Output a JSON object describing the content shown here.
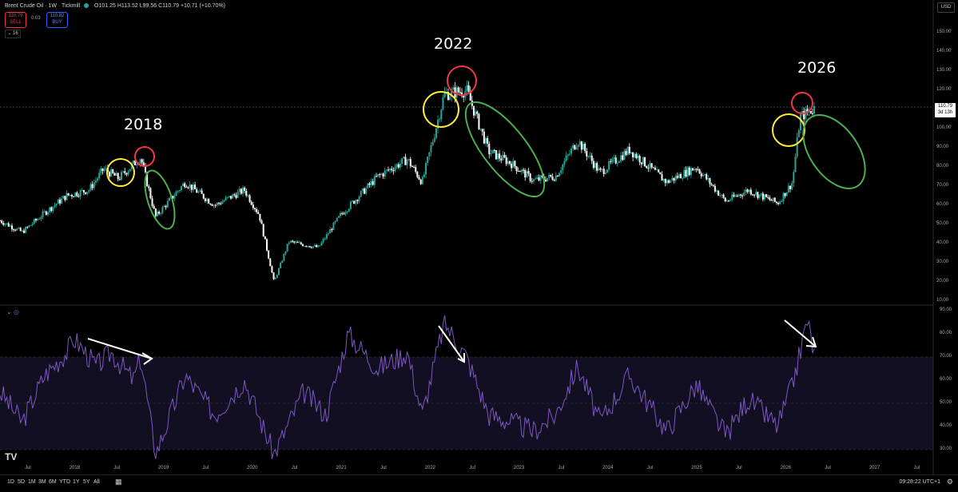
{
  "header": {
    "symbol_title": "Brent Crude Oil · 1W · Tickmill",
    "ohlc": "O101.25 H113.52 L99.56 C110.79 +10.71 (+10.70%)",
    "sell_price": "110.79",
    "sell_label": "SELL",
    "spread": "0.03",
    "buy_price": "110.82",
    "buy_label": "BUY",
    "indicator_count": "16",
    "currency": "USD"
  },
  "price_axis": {
    "ticks": [
      "150.00",
      "140.00",
      "130.00",
      "120.00",
      "110.00",
      "100.00",
      "90.00",
      "80.00",
      "70.00",
      "60.00",
      "50.00",
      "40.00",
      "30.00",
      "20.00",
      "10.00"
    ],
    "last_price": "110.79",
    "countdown": "3d 13h"
  },
  "rsi_axis": {
    "ticks": [
      "90.00",
      "80.00",
      "70.00",
      "60.00",
      "50.00",
      "40.00",
      "30.00"
    ]
  },
  "time_axis": {
    "labels": [
      "Jul",
      "2018",
      "Jul",
      "2019",
      "Jul",
      "2020",
      "Jul",
      "2021",
      "Jul",
      "2022",
      "Jul",
      "2023",
      "Jul",
      "2024",
      "Jul",
      "2025",
      "Jul",
      "2026",
      "Jul",
      "2027",
      "Jul"
    ]
  },
  "annotations": {
    "y2018": "2018",
    "y2022": "2022",
    "y2026": "2026"
  },
  "bottom_bar": {
    "ranges": [
      "1D",
      "5D",
      "1M",
      "3M",
      "6M",
      "YTD",
      "1Y",
      "5Y",
      "All"
    ],
    "clock": "09:28:22 UTC+1"
  },
  "colors": {
    "background": "#000000",
    "up_candle": "#26a69a",
    "down_candle": "#ffffff",
    "rsi_line": "#7e57c2",
    "rsi_band": "#1a1530",
    "circle_yellow": "#ffeb3b",
    "circle_red": "#f23645",
    "ellipse_green": "#4caf50",
    "arrow": "#ffffff"
  },
  "chart_data": {
    "type": "candlestick",
    "title": "Brent Crude Oil · 1W · Tickmill",
    "x_range": [
      "2017-03",
      "2027-09"
    ],
    "price_ylim": [
      10,
      150
    ],
    "price_close_series": [
      {
        "date": "2017-03",
        "close": 52
      },
      {
        "date": "2017-06",
        "close": 46
      },
      {
        "date": "2017-09",
        "close": 56
      },
      {
        "date": "2017-12",
        "close": 65
      },
      {
        "date": "2018-03",
        "close": 68
      },
      {
        "date": "2018-05",
        "close": 79
      },
      {
        "date": "2018-07",
        "close": 74
      },
      {
        "date": "2018-10",
        "close": 85
      },
      {
        "date": "2018-12",
        "close": 54
      },
      {
        "date": "2019-04",
        "close": 72
      },
      {
        "date": "2019-08",
        "close": 60
      },
      {
        "date": "2019-12",
        "close": 68
      },
      {
        "date": "2020-02",
        "close": 55
      },
      {
        "date": "2020-04",
        "close": 20
      },
      {
        "date": "2020-06",
        "close": 41
      },
      {
        "date": "2020-10",
        "close": 38
      },
      {
        "date": "2021-01",
        "close": 55
      },
      {
        "date": "2021-06",
        "close": 75
      },
      {
        "date": "2021-10",
        "close": 84
      },
      {
        "date": "2021-12",
        "close": 72
      },
      {
        "date": "2022-03",
        "close": 118
      },
      {
        "date": "2022-06",
        "close": 120
      },
      {
        "date": "2022-09",
        "close": 88
      },
      {
        "date": "2022-12",
        "close": 82
      },
      {
        "date": "2023-03",
        "close": 73
      },
      {
        "date": "2023-06",
        "close": 75
      },
      {
        "date": "2023-09",
        "close": 94
      },
      {
        "date": "2023-12",
        "close": 77
      },
      {
        "date": "2024-04",
        "close": 89
      },
      {
        "date": "2024-09",
        "close": 72
      },
      {
        "date": "2025-01",
        "close": 80
      },
      {
        "date": "2025-05",
        "close": 62
      },
      {
        "date": "2025-08",
        "close": 68
      },
      {
        "date": "2025-12",
        "close": 61
      },
      {
        "date": "2026-02",
        "close": 72
      },
      {
        "date": "2026-03",
        "close": 106
      },
      {
        "date": "2026-05",
        "close": 110.79
      }
    ],
    "rsi_ylim": [
      30,
      90
    ],
    "rsi_levels": [
      70,
      50,
      30
    ],
    "rsi_series": [
      {
        "date": "2017-03",
        "value": 55
      },
      {
        "date": "2017-06",
        "value": 42
      },
      {
        "date": "2017-09",
        "value": 62
      },
      {
        "date": "2017-12",
        "value": 72
      },
      {
        "date": "2018-01",
        "value": 78
      },
      {
        "date": "2018-04",
        "value": 66
      },
      {
        "date": "2018-06",
        "value": 72
      },
      {
        "date": "2018-09",
        "value": 60
      },
      {
        "date": "2018-10",
        "value": 70
      },
      {
        "date": "2018-12",
        "value": 28
      },
      {
        "date": "2019-04",
        "value": 62
      },
      {
        "date": "2019-08",
        "value": 45
      },
      {
        "date": "2019-12",
        "value": 60
      },
      {
        "date": "2020-04",
        "value": 28
      },
      {
        "date": "2020-08",
        "value": 55
      },
      {
        "date": "2020-11",
        "value": 45
      },
      {
        "date": "2021-02",
        "value": 80
      },
      {
        "date": "2021-06",
        "value": 65
      },
      {
        "date": "2021-10",
        "value": 72
      },
      {
        "date": "2021-12",
        "value": 45
      },
      {
        "date": "2022-03",
        "value": 85
      },
      {
        "date": "2022-06",
        "value": 70
      },
      {
        "date": "2022-09",
        "value": 45
      },
      {
        "date": "2022-12",
        "value": 42
      },
      {
        "date": "2023-03",
        "value": 38
      },
      {
        "date": "2023-06",
        "value": 45
      },
      {
        "date": "2023-09",
        "value": 66
      },
      {
        "date": "2023-12",
        "value": 42
      },
      {
        "date": "2024-04",
        "value": 62
      },
      {
        "date": "2024-09",
        "value": 38
      },
      {
        "date": "2025-01",
        "value": 58
      },
      {
        "date": "2025-05",
        "value": 36
      },
      {
        "date": "2025-08",
        "value": 52
      },
      {
        "date": "2025-12",
        "value": 40
      },
      {
        "date": "2026-02",
        "value": 58
      },
      {
        "date": "2026-04",
        "value": 86
      },
      {
        "date": "2026-05",
        "value": 70
      }
    ]
  }
}
